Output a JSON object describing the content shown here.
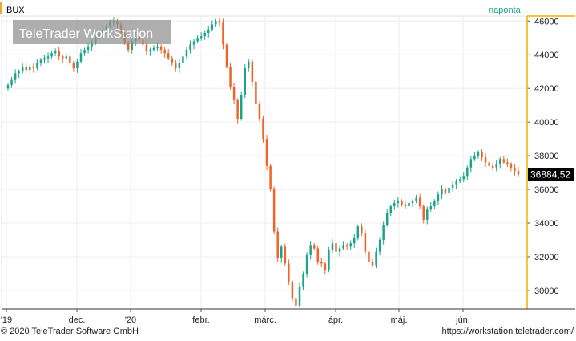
{
  "header": {
    "symbol": "BUX",
    "period": "naponta",
    "watermark": "TeleTrader WorkStation"
  },
  "footer": {
    "copyright": "© 2020 TeleTrader Software GmbH",
    "url": "https://workstation.teletrader.com/"
  },
  "colors": {
    "up": "#1aa58a",
    "down": "#f0642a",
    "axis_line": "#f0b000",
    "grid": "#eeeeee",
    "last_price_bg": "#000000"
  },
  "chart_data": {
    "type": "candlestick",
    "symbol": "BUX",
    "interval": "naponta",
    "x_tick_labels": [
      "'19",
      "dec.",
      "'20",
      "febr.",
      "márc.",
      "ápr.",
      "máj.",
      "jún."
    ],
    "y_ticks": [
      30000,
      32000,
      34000,
      36000,
      38000,
      40000,
      42000,
      44000,
      46000
    ],
    "ylim": [
      28900,
      46300
    ],
    "last_price_label": "36884,52",
    "last_price": 36884.52,
    "grid": true,
    "legend": "none",
    "close_series": [
      42200,
      42500,
      42900,
      43000,
      43300,
      43100,
      43300,
      43200,
      43500,
      43700,
      43800,
      43900,
      44100,
      44200,
      43900,
      43800,
      43900,
      43500,
      43200,
      43600,
      44100,
      44300,
      44500,
      44700,
      45000,
      45300,
      45500,
      45700,
      45900,
      46000,
      45800,
      45300,
      44700,
      44300,
      44800,
      45100,
      44900,
      44600,
      44200,
      44300,
      44400,
      44500,
      44300,
      44100,
      43800,
      43500,
      43200,
      43500,
      43900,
      44300,
      44600,
      44800,
      45000,
      45100,
      45300,
      45500,
      45800,
      46000,
      45900,
      44600,
      43300,
      42100,
      41300,
      40200,
      41600,
      43200,
      43600,
      42400,
      41100,
      40200,
      39000,
      37400,
      36000,
      33500,
      31900,
      32600,
      31600,
      30500,
      29500,
      29100,
      30200,
      31000,
      32100,
      32700,
      32500,
      31700,
      31600,
      31200,
      32400,
      32800,
      32300,
      32500,
      32700,
      32600,
      32800,
      33100,
      33800,
      33400,
      32300,
      31700,
      31500,
      32300,
      33000,
      33900,
      34600,
      35000,
      35200,
      35300,
      35100,
      35000,
      35200,
      35300,
      35500,
      35000,
      34200,
      34800,
      35000,
      35300,
      35700,
      36000,
      35800,
      36100,
      36300,
      36500,
      36600,
      36800,
      37300,
      37800,
      38000,
      38200,
      37900,
      37600,
      37400,
      37300,
      37500,
      37800,
      37600,
      37500,
      37300,
      37100,
      36884.52
    ]
  }
}
